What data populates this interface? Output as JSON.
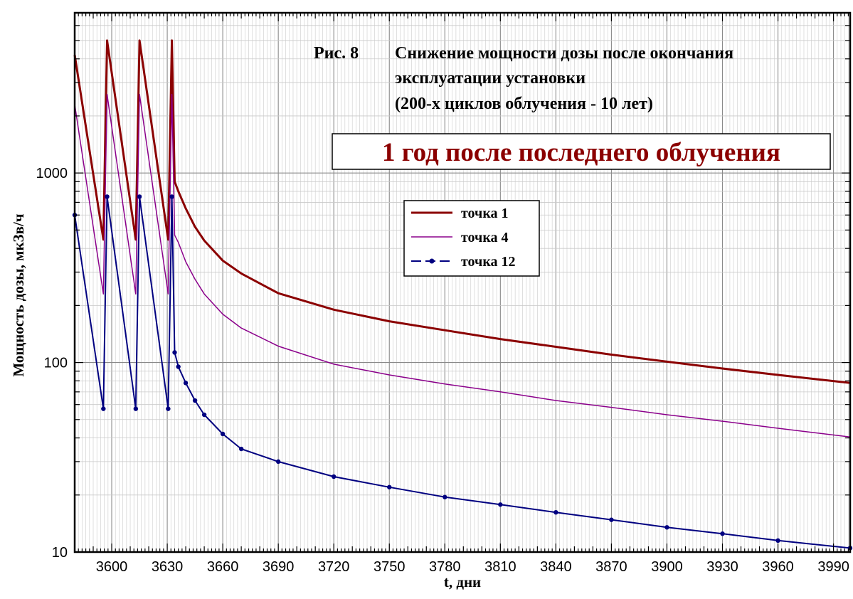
{
  "chart_data": {
    "type": "line",
    "title_fig": "Рис. 8",
    "title_lines": [
      "Снижение мощности дозы после окончания",
      "эксплуатации установки",
      "(200-х циклов облучения - 10 лет)"
    ],
    "subtitle": "1 год после последнего облучения",
    "subtitle_color": "#8b0000",
    "xlabel": "t, дни",
    "ylabel": "Мощность дозы, мкЗв/ч",
    "xlim": [
      3580,
      3999
    ],
    "ylim": [
      10,
      7000
    ],
    "yscale": "log",
    "x_ticks": [
      3600,
      3630,
      3660,
      3690,
      3720,
      3750,
      3780,
      3810,
      3840,
      3870,
      3900,
      3930,
      3960,
      3990
    ],
    "y_ticks": [
      10,
      100,
      1000
    ],
    "grid": true,
    "legend_position": "middle",
    "series": [
      {
        "name": "точка 1",
        "color": "#8b0000",
        "style": "solid-thick",
        "x": [
          3580,
          3595.5,
          3597.5,
          3613.0,
          3615.0,
          3630.5,
          3632.5,
          3634,
          3636,
          3640,
          3645,
          3650,
          3660,
          3670,
          3690,
          3720,
          3750,
          3780,
          3810,
          3840,
          3870,
          3900,
          3930,
          3960,
          3999
        ],
        "y": [
          4200,
          445,
          5000,
          445,
          5000,
          445,
          5000,
          900,
          800,
          650,
          520,
          440,
          345,
          295,
          232,
          190,
          165,
          148,
          133,
          121,
          110,
          101,
          93,
          86,
          78
        ]
      },
      {
        "name": "точка 4",
        "color": "#8b008b",
        "style": "solid-thin",
        "x": [
          3580,
          3595.5,
          3597.5,
          3613.0,
          3615.0,
          3630.5,
          3632.5,
          3634,
          3636,
          3640,
          3645,
          3650,
          3660,
          3670,
          3690,
          3720,
          3750,
          3780,
          3810,
          3840,
          3870,
          3900,
          3930,
          3960,
          3999
        ],
        "y": [
          2300,
          230,
          2600,
          230,
          2600,
          230,
          2600,
          470,
          430,
          340,
          275,
          230,
          180,
          152,
          122,
          98,
          86,
          77,
          70,
          63,
          58,
          53,
          49,
          45,
          40.5
        ]
      },
      {
        "name": "точка 12",
        "color": "#000080",
        "style": "dash-dot-markers",
        "x": [
          3580,
          3595.5,
          3597.5,
          3613.0,
          3615.0,
          3630.5,
          3632.5,
          3634,
          3636,
          3640,
          3645,
          3650,
          3660,
          3670,
          3690,
          3720,
          3750,
          3780,
          3810,
          3840,
          3870,
          3900,
          3930,
          3960,
          3999
        ],
        "y": [
          600,
          57,
          750,
          57,
          750,
          57,
          750,
          113,
          95,
          78,
          63,
          53,
          42,
          35,
          30,
          25,
          22,
          19.5,
          17.8,
          16.2,
          14.8,
          13.5,
          12.5,
          11.5,
          10.5
        ]
      }
    ]
  }
}
